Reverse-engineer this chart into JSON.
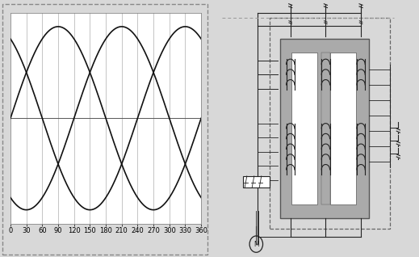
{
  "left_panel": {
    "bg_color": "#ffffff",
    "dashed_border_color": "#888888",
    "grid_color": "#bbbbbb",
    "sine_color": "#111111",
    "x_ticks": [
      0,
      30,
      60,
      90,
      120,
      150,
      180,
      210,
      240,
      270,
      300,
      330,
      360
    ],
    "x_label_fontsize": 6.0,
    "phase_shifts_deg": [
      0,
      120,
      240
    ]
  },
  "right_panel": {
    "line_color": "#222222",
    "core_fill": "#aaaaaa",
    "core_edge": "#555555",
    "coil_color": "#333333"
  },
  "fig_bg": "#d8d8d8"
}
